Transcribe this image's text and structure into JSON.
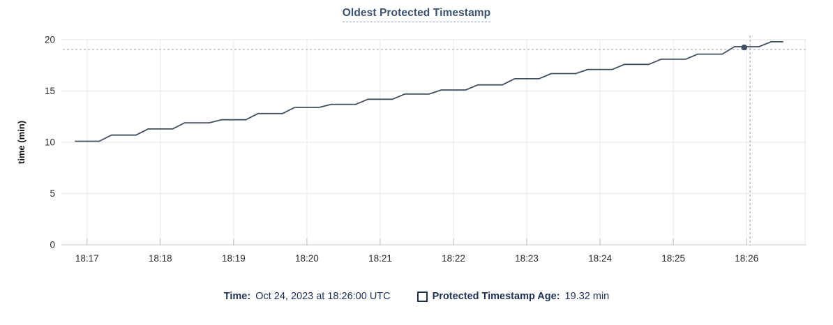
{
  "chart_data": {
    "type": "line",
    "title": "Oldest Protected Timestamp",
    "xlabel": "",
    "ylabel": "time (min)",
    "x_tick_labels": [
      "18:17",
      "18:18",
      "18:19",
      "18:20",
      "18:21",
      "18:22",
      "18:23",
      "18:24",
      "18:25",
      "18:26"
    ],
    "y_ticks": [
      0,
      5,
      10,
      15,
      20
    ],
    "y_range": [
      0,
      20
    ],
    "x_range": [
      "18:16:39",
      "18:26:49"
    ],
    "grid": true,
    "legend_position": "bottom",
    "series": [
      {
        "name": "Protected Timestamp Age",
        "unit": "min",
        "points": [
          [
            "18:16:50",
            10.1
          ],
          [
            "18:17:10",
            10.1
          ],
          [
            "18:17:20",
            10.7
          ],
          [
            "18:17:40",
            10.7
          ],
          [
            "18:17:50",
            11.3
          ],
          [
            "18:18:10",
            11.3
          ],
          [
            "18:18:20",
            11.9
          ],
          [
            "18:18:40",
            11.9
          ],
          [
            "18:18:50",
            12.2
          ],
          [
            "18:19:10",
            12.2
          ],
          [
            "18:19:20",
            12.8
          ],
          [
            "18:19:40",
            12.8
          ],
          [
            "18:19:50",
            13.4
          ],
          [
            "18:20:10",
            13.4
          ],
          [
            "18:20:20",
            13.7
          ],
          [
            "18:20:40",
            13.7
          ],
          [
            "18:20:50",
            14.2
          ],
          [
            "18:21:10",
            14.2
          ],
          [
            "18:21:20",
            14.7
          ],
          [
            "18:21:40",
            14.7
          ],
          [
            "18:21:50",
            15.1
          ],
          [
            "18:22:10",
            15.1
          ],
          [
            "18:22:20",
            15.6
          ],
          [
            "18:22:40",
            15.6
          ],
          [
            "18:22:50",
            16.2
          ],
          [
            "18:23:10",
            16.2
          ],
          [
            "18:23:20",
            16.7
          ],
          [
            "18:23:40",
            16.7
          ],
          [
            "18:23:50",
            17.1
          ],
          [
            "18:24:10",
            17.1
          ],
          [
            "18:24:20",
            17.6
          ],
          [
            "18:24:40",
            17.6
          ],
          [
            "18:24:50",
            18.1
          ],
          [
            "18:25:10",
            18.1
          ],
          [
            "18:25:20",
            18.6
          ],
          [
            "18:25:40",
            18.6
          ],
          [
            "18:25:50",
            19.32
          ],
          [
            "18:26:10",
            19.32
          ],
          [
            "18:26:20",
            19.8
          ],
          [
            "18:26:30",
            19.8
          ]
        ]
      }
    ],
    "hover_point": {
      "time": "18:26:00",
      "value": 19.32
    },
    "colors": {
      "line": "#414d63",
      "dot": "#414d63",
      "crosshair": "#a3b5c2",
      "grid": "#ebebeb",
      "axis": "#d8d8d8",
      "tick": "#c4c4c4",
      "tick_text": "#2b2b2b",
      "axis_label_text": "#111111"
    }
  },
  "legend": {
    "time_label": "Time:",
    "time_value": "Oct 24, 2023 at 18:26:00 UTC",
    "series_label": "Protected Timestamp Age:",
    "series_value": "19.32 min"
  }
}
